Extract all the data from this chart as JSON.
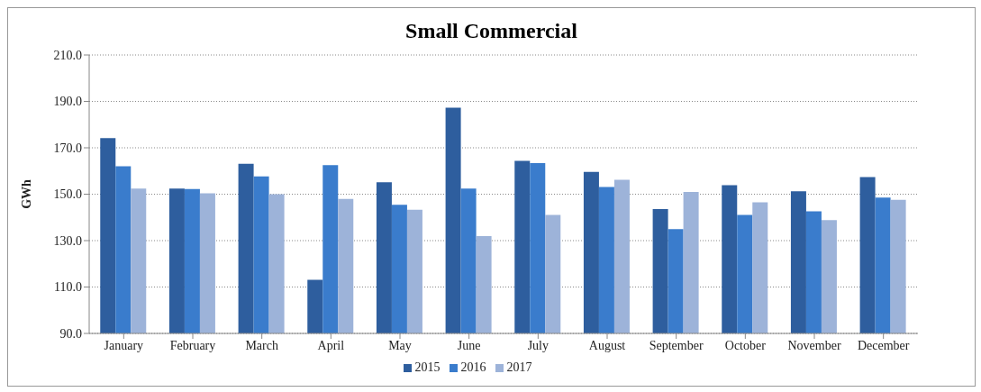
{
  "chart_data": {
    "type": "bar",
    "title": "Small Commercial",
    "ylabel": "GWh",
    "categories": [
      "January",
      "February",
      "March",
      "April",
      "May",
      "June",
      "July",
      "August",
      "September",
      "October",
      "November",
      "December"
    ],
    "series": [
      {
        "name": "2015",
        "color": "#2e5e9e",
        "values": [
          174.2,
          152.4,
          163.1,
          113.1,
          155.1,
          187.3,
          164.4,
          159.6,
          143.6,
          153.9,
          151.3,
          157.4
        ]
      },
      {
        "name": "2016",
        "color": "#3a7ccc",
        "values": [
          162.0,
          152.2,
          157.7,
          162.5,
          145.4,
          152.4,
          163.4,
          153.1,
          135.0,
          141.1,
          142.6,
          148.5
        ]
      },
      {
        "name": "2017",
        "color": "#9db3d9",
        "values": [
          152.4,
          150.4,
          150.0,
          148.0,
          143.3,
          131.9,
          141.1,
          156.2,
          151.0,
          146.5,
          138.8,
          147.6
        ]
      }
    ],
    "ylim": [
      90,
      210
    ],
    "yticks": [
      {
        "value": 90,
        "label": "90.0"
      },
      {
        "value": 110,
        "label": "110.0"
      },
      {
        "value": 130,
        "label": "130.0"
      },
      {
        "value": 150,
        "label": "150.0"
      },
      {
        "value": 170,
        "label": "170.0"
      },
      {
        "value": 190,
        "label": "190.0"
      },
      {
        "value": 210,
        "label": "210.0"
      }
    ],
    "grid": "y",
    "legend": "bottom"
  }
}
